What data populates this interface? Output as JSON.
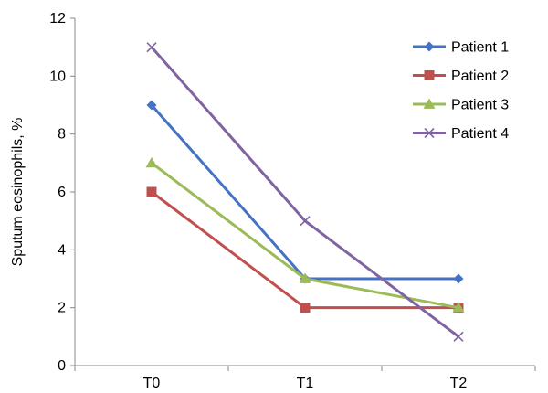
{
  "chart_data": {
    "type": "line",
    "title": "",
    "xlabel": "",
    "ylabel": "Sputum eosinophils, %",
    "categories": [
      "T0",
      "T1",
      "T2"
    ],
    "ylim": [
      0,
      12
    ],
    "yticks": [
      0,
      2,
      4,
      6,
      8,
      10,
      12
    ],
    "grid": false,
    "legend_position": "top-right",
    "series": [
      {
        "name": "Patient 1",
        "values": [
          9,
          3,
          3
        ],
        "color": "#4472C4",
        "marker": "diamond"
      },
      {
        "name": "Patient 2",
        "values": [
          6,
          2,
          2
        ],
        "color": "#C0504D",
        "marker": "square"
      },
      {
        "name": "Patient 3",
        "values": [
          7,
          3,
          2
        ],
        "color": "#9BBB59",
        "marker": "triangle"
      },
      {
        "name": "Patient 4",
        "values": [
          11,
          5,
          1
        ],
        "color": "#8064A2",
        "marker": "x"
      }
    ]
  }
}
